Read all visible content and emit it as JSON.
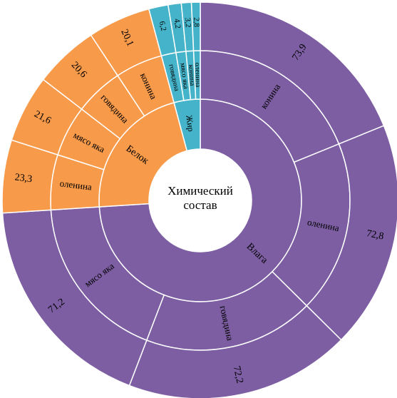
{
  "chart_data": {
    "type": "sunburst",
    "title": "",
    "center_label_lines": [
      "Химический",
      "состав"
    ],
    "colors": {
      "Влага": "#7d5ea3",
      "Белок": "#f79a4a",
      "Жир": "#45b3c9"
    },
    "categories": [
      {
        "name": "Влага",
        "children": [
          {
            "name": "конина",
            "value": 73.9,
            "value_label": "73,9"
          },
          {
            "name": "оленина",
            "value": 72.8,
            "value_label": "72,8"
          },
          {
            "name": "говядина",
            "value": 72.2,
            "value_label": "72,2"
          },
          {
            "name": "мясо яка",
            "value": 71.2,
            "value_label": "71,2"
          }
        ]
      },
      {
        "name": "Белок",
        "children": [
          {
            "name": "оленина",
            "value": 23.3,
            "value_label": "23,3"
          },
          {
            "name": "мясо яка",
            "value": 21.6,
            "value_label": "21,6"
          },
          {
            "name": "говядина",
            "value": 20.6,
            "value_label": "20,6"
          },
          {
            "name": "конина",
            "value": 20.1,
            "value_label": "20,1"
          }
        ]
      },
      {
        "name": "Жир",
        "children": [
          {
            "name": "говядина",
            "value": 6.2,
            "value_label": "6,2"
          },
          {
            "name": "мясо яка",
            "value": 4.2,
            "value_label": "4,2"
          },
          {
            "name": "конина",
            "value": 3.2,
            "value_label": "3,2"
          },
          {
            "name": "оленина",
            "value": 2.8,
            "value_label": "2,8"
          }
        ]
      }
    ]
  }
}
